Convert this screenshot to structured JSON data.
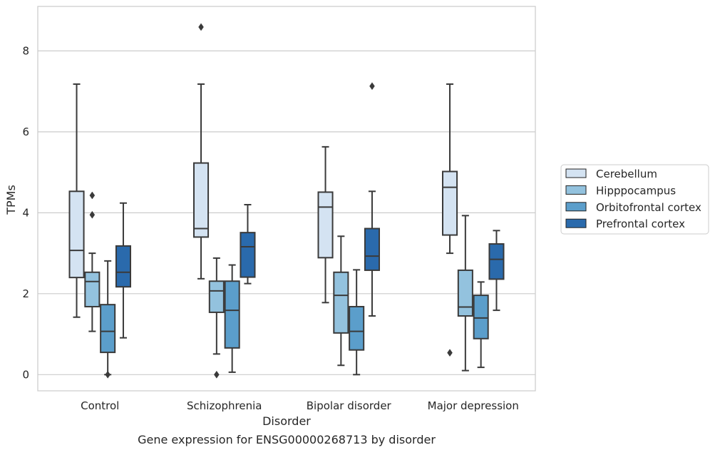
{
  "caption": "Gene expression for ENSG00000268713 by disorder",
  "chart_data": {
    "type": "boxplot",
    "xlabel": "Disorder",
    "ylabel": "TPMs",
    "ylim": [
      -0.4,
      9.1
    ],
    "yticks": [
      0,
      2,
      4,
      6,
      8
    ],
    "grid": true,
    "legend_placement": "right",
    "categories": [
      "Control",
      "Schizophrenia",
      "Bipolar disorder",
      "Major depression"
    ],
    "series": [
      {
        "name": "Cerebellum",
        "color": "#d4e3f2",
        "boxes": [
          {
            "whislo": 1.42,
            "q1": 2.4,
            "med": 3.07,
            "q3": 4.53,
            "whishi": 7.18,
            "fliers": []
          },
          {
            "whislo": 2.37,
            "q1": 3.4,
            "med": 3.61,
            "q3": 5.23,
            "whishi": 7.18,
            "fliers": [
              8.59
            ]
          },
          {
            "whislo": 1.78,
            "q1": 2.89,
            "med": 4.14,
            "q3": 4.51,
            "whishi": 5.63,
            "fliers": []
          },
          {
            "whislo": 3.0,
            "q1": 3.45,
            "med": 4.63,
            "q3": 5.02,
            "whishi": 7.18,
            "fliers": [
              0.54
            ]
          }
        ]
      },
      {
        "name": "Hipppocampus",
        "color": "#93c2de",
        "boxes": [
          {
            "whislo": 1.07,
            "q1": 1.68,
            "med": 2.3,
            "q3": 2.53,
            "whishi": 3.0,
            "fliers": [
              4.43,
              3.95
            ]
          },
          {
            "whislo": 0.51,
            "q1": 1.54,
            "med": 2.07,
            "q3": 2.31,
            "whishi": 2.88,
            "fliers": [
              0.0
            ]
          },
          {
            "whislo": 0.23,
            "q1": 1.03,
            "med": 1.96,
            "q3": 2.53,
            "whishi": 3.42,
            "fliers": []
          },
          {
            "whislo": 0.1,
            "q1": 1.45,
            "med": 1.67,
            "q3": 2.58,
            "whishi": 3.93,
            "fliers": []
          }
        ]
      },
      {
        "name": "Orbitofrontal cortex",
        "color": "#5b9ecb",
        "boxes": [
          {
            "whislo": 0.0,
            "q1": 0.55,
            "med": 1.07,
            "q3": 1.73,
            "whishi": 2.81,
            "fliers": [
              0.0
            ]
          },
          {
            "whislo": 0.06,
            "q1": 0.66,
            "med": 1.59,
            "q3": 2.31,
            "whishi": 2.71,
            "fliers": []
          },
          {
            "whislo": 0.0,
            "q1": 0.61,
            "med": 1.07,
            "q3": 1.68,
            "whishi": 2.59,
            "fliers": []
          },
          {
            "whislo": 0.18,
            "q1": 0.89,
            "med": 1.4,
            "q3": 1.96,
            "whishi": 2.29,
            "fliers": []
          }
        ]
      },
      {
        "name": "Prefrontal cortex",
        "color": "#2a6aac",
        "boxes": [
          {
            "whislo": 0.91,
            "q1": 2.17,
            "med": 2.53,
            "q3": 3.18,
            "whishi": 4.24,
            "fliers": []
          },
          {
            "whislo": 2.25,
            "q1": 2.41,
            "med": 3.16,
            "q3": 3.51,
            "whishi": 4.2,
            "fliers": []
          },
          {
            "whislo": 1.45,
            "q1": 2.58,
            "med": 2.93,
            "q3": 3.61,
            "whishi": 4.53,
            "fliers": [
              7.13
            ]
          },
          {
            "whislo": 1.59,
            "q1": 2.36,
            "med": 2.85,
            "q3": 3.23,
            "whishi": 3.56,
            "fliers": []
          }
        ]
      }
    ]
  }
}
